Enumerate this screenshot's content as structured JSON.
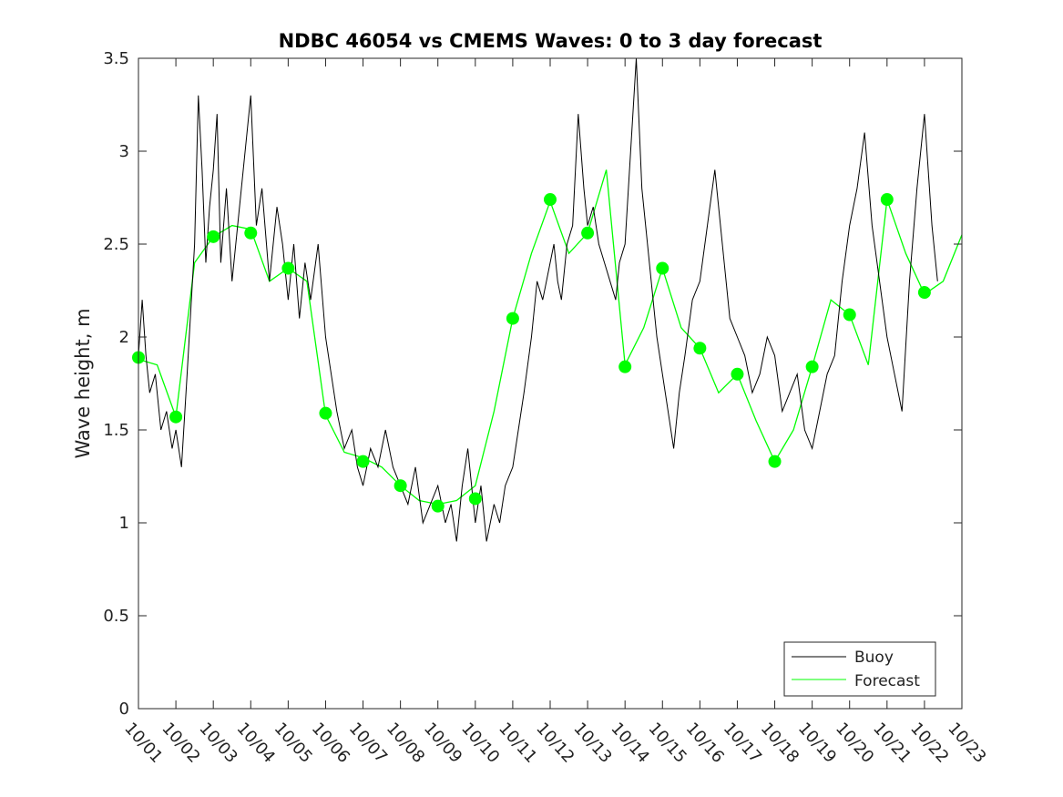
{
  "chart_data": {
    "type": "line",
    "title": "NDBC 46054 vs CMEMS Waves: 0 to 3 day forecast",
    "xlabel": "",
    "ylabel": "Wave height, m",
    "xlim": [
      "10/01",
      "10/23"
    ],
    "ylim": [
      0,
      3.5
    ],
    "x_ticks": [
      "10/01",
      "10/02",
      "10/03",
      "10/04",
      "10/05",
      "10/06",
      "10/07",
      "10/08",
      "10/09",
      "10/10",
      "10/11",
      "10/12",
      "10/13",
      "10/14",
      "10/15",
      "10/16",
      "10/17",
      "10/18",
      "10/19",
      "10/20",
      "10/21",
      "10/22",
      "10/23"
    ],
    "y_ticks": [
      "0",
      "0.5",
      "1",
      "1.5",
      "2",
      "2.5",
      "3",
      "3.5"
    ],
    "grid": false,
    "legend": {
      "placement": "bottom-right",
      "entries": [
        "Buoy",
        "Forecast"
      ]
    },
    "colors": {
      "buoy": "#000000",
      "forecast": "#00ff00",
      "axes": "#262626"
    },
    "series": [
      {
        "name": "Buoy",
        "x": [
          0.0,
          0.1,
          0.2,
          0.3,
          0.45,
          0.6,
          0.75,
          0.9,
          1.0,
          1.15,
          1.3,
          1.5,
          1.6,
          1.7,
          1.8,
          1.9,
          2.0,
          2.1,
          2.2,
          2.35,
          2.5,
          2.65,
          2.8,
          3.0,
          3.15,
          3.3,
          3.5,
          3.7,
          3.85,
          4.0,
          4.15,
          4.3,
          4.45,
          4.6,
          4.8,
          5.0,
          5.15,
          5.3,
          5.5,
          5.7,
          5.85,
          6.0,
          6.2,
          6.4,
          6.6,
          6.8,
          7.0,
          7.2,
          7.4,
          7.6,
          7.8,
          8.0,
          8.2,
          8.35,
          8.5,
          8.65,
          8.8,
          9.0,
          9.15,
          9.3,
          9.5,
          9.65,
          9.8,
          10.0,
          10.15,
          10.3,
          10.5,
          10.65,
          10.8,
          11.0,
          11.1,
          11.2,
          11.3,
          11.45,
          11.6,
          11.75,
          11.9,
          12.0,
          12.15,
          12.3,
          12.45,
          12.6,
          12.75,
          12.85,
          13.0,
          13.15,
          13.3,
          13.45,
          13.6,
          13.7,
          13.85,
          14.0,
          14.15,
          14.3,
          14.45,
          14.6,
          14.8,
          15.0,
          15.2,
          15.4,
          15.6,
          15.8,
          16.0,
          16.2,
          16.4,
          16.6,
          16.8,
          17.0,
          17.2,
          17.4,
          17.6,
          17.8,
          18.0,
          18.2,
          18.4,
          18.6,
          18.8,
          19.0,
          19.2,
          19.4,
          19.6,
          19.8,
          20.0,
          20.2,
          20.4,
          20.6,
          20.8,
          21.0,
          21.2,
          21.35
        ],
        "y": [
          1.9,
          2.2,
          1.9,
          1.7,
          1.8,
          1.5,
          1.6,
          1.4,
          1.5,
          1.3,
          1.8,
          2.5,
          3.3,
          2.9,
          2.4,
          2.7,
          2.9,
          3.2,
          2.4,
          2.8,
          2.3,
          2.6,
          2.9,
          3.3,
          2.6,
          2.8,
          2.3,
          2.7,
          2.5,
          2.2,
          2.5,
          2.1,
          2.4,
          2.2,
          2.5,
          2.0,
          1.8,
          1.6,
          1.4,
          1.5,
          1.3,
          1.2,
          1.4,
          1.3,
          1.5,
          1.3,
          1.2,
          1.1,
          1.3,
          1.0,
          1.1,
          1.2,
          1.0,
          1.1,
          0.9,
          1.2,
          1.4,
          1.0,
          1.2,
          0.9,
          1.1,
          1.0,
          1.2,
          1.3,
          1.5,
          1.7,
          2.0,
          2.3,
          2.2,
          2.4,
          2.5,
          2.3,
          2.2,
          2.5,
          2.6,
          3.2,
          2.8,
          2.6,
          2.7,
          2.5,
          2.4,
          2.3,
          2.2,
          2.4,
          2.5,
          3.0,
          3.5,
          2.8,
          2.5,
          2.3,
          2.0,
          1.8,
          1.6,
          1.4,
          1.7,
          1.9,
          2.2,
          2.3,
          2.6,
          2.9,
          2.5,
          2.1,
          2.0,
          1.9,
          1.7,
          1.8,
          2.0,
          1.9,
          1.6,
          1.7,
          1.8,
          1.5,
          1.4,
          1.6,
          1.8,
          1.9,
          2.3,
          2.6,
          2.8,
          3.1,
          2.6,
          2.3,
          2.0,
          1.8,
          1.6,
          2.3,
          2.8,
          3.2,
          2.6,
          2.3
        ],
        "color": "#000000"
      },
      {
        "name": "Forecast",
        "x": [
          0.0,
          0.5,
          1.0,
          1.5,
          2.0,
          2.5,
          3.0,
          3.5,
          4.0,
          4.5,
          5.0,
          5.5,
          6.0,
          6.5,
          7.0,
          7.5,
          8.0,
          8.5,
          9.0,
          9.5,
          10.0,
          10.5,
          11.0,
          11.5,
          12.0,
          12.5,
          13.0,
          13.5,
          14.0,
          14.5,
          15.0,
          15.5,
          16.0,
          16.5,
          17.0,
          17.5,
          18.0,
          18.5,
          19.0,
          19.5,
          20.0,
          20.5,
          21.0,
          21.5,
          22.0
        ],
        "y": [
          1.88,
          1.85,
          1.57,
          2.4,
          2.54,
          2.6,
          2.58,
          2.3,
          2.37,
          2.3,
          1.58,
          1.38,
          1.35,
          1.3,
          1.2,
          1.12,
          1.1,
          1.12,
          1.2,
          1.6,
          2.1,
          2.45,
          2.73,
          2.45,
          2.56,
          2.9,
          1.85,
          2.05,
          2.37,
          2.05,
          1.94,
          1.7,
          1.8,
          1.55,
          1.33,
          1.5,
          1.84,
          2.2,
          2.12,
          1.85,
          2.74,
          2.45,
          2.23,
          2.3,
          2.55
        ],
        "color": "#00ff00"
      }
    ],
    "markers": {
      "series": "Forecast",
      "x": [
        0,
        1,
        2,
        3,
        4,
        5,
        6,
        7,
        8,
        9,
        10,
        11,
        12,
        13,
        14,
        15,
        16,
        17,
        18,
        19,
        20,
        21
      ],
      "y": [
        1.89,
        1.57,
        2.54,
        2.56,
        2.37,
        1.59,
        1.33,
        1.2,
        1.09,
        1.13,
        2.1,
        2.74,
        2.56,
        1.84,
        2.37,
        1.94,
        1.8,
        1.33,
        1.84,
        2.12,
        2.74,
        2.24
      ]
    }
  }
}
